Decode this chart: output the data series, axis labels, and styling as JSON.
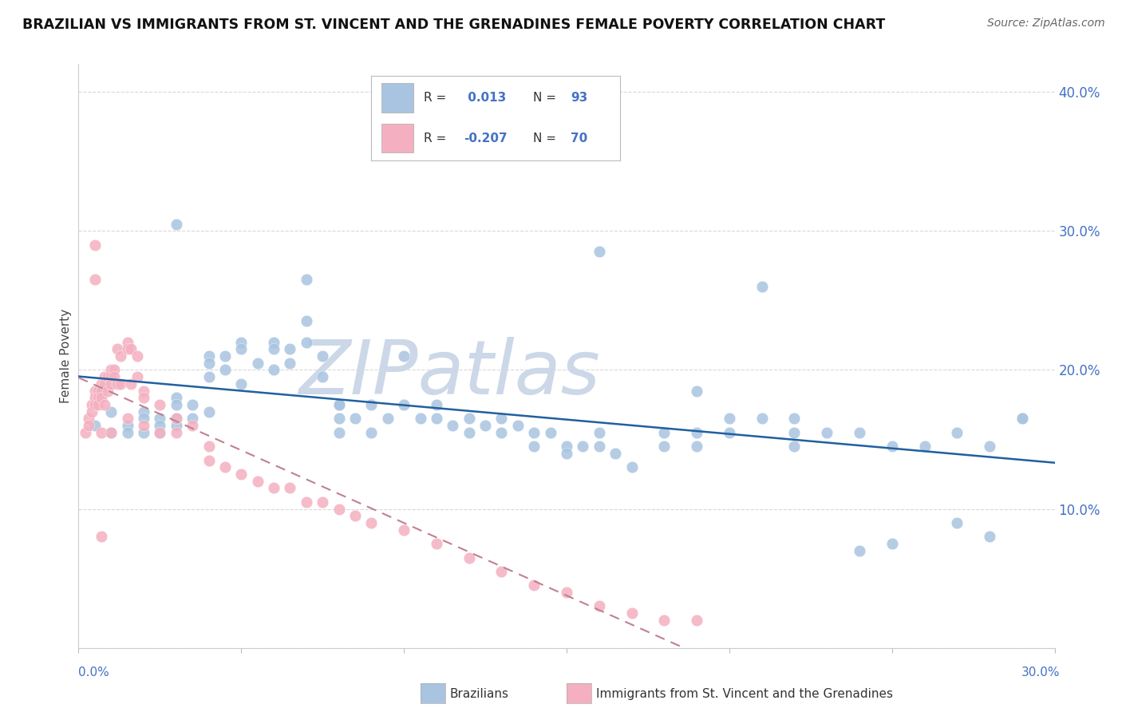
{
  "title": "BRAZILIAN VS IMMIGRANTS FROM ST. VINCENT AND THE GRENADINES FEMALE POVERTY CORRELATION CHART",
  "source": "Source: ZipAtlas.com",
  "ylabel": "Female Poverty",
  "xlim": [
    0.0,
    0.3
  ],
  "ylim": [
    0.0,
    0.42
  ],
  "yticks": [
    0.0,
    0.1,
    0.2,
    0.3,
    0.4
  ],
  "ytick_labels": [
    "",
    "10.0%",
    "20.0%",
    "30.0%",
    "40.0%"
  ],
  "legend_r1": " 0.013",
  "legend_n1": "93",
  "legend_r2": "-0.207",
  "legend_n2": "70",
  "blue_color": "#a8c4e0",
  "pink_color": "#f4b0c0",
  "trend_blue_color": "#2060a0",
  "trend_pink_color": "#c08090",
  "watermark": "ZIPatlas",
  "watermark_color": "#ccd8e8",
  "background_color": "#ffffff",
  "grid_color": "#d8d8d8",
  "blue_x": [
    0.005,
    0.01,
    0.01,
    0.015,
    0.015,
    0.02,
    0.02,
    0.02,
    0.025,
    0.025,
    0.025,
    0.03,
    0.03,
    0.03,
    0.03,
    0.035,
    0.035,
    0.04,
    0.04,
    0.04,
    0.04,
    0.045,
    0.045,
    0.05,
    0.05,
    0.05,
    0.055,
    0.06,
    0.06,
    0.06,
    0.065,
    0.065,
    0.07,
    0.07,
    0.075,
    0.075,
    0.08,
    0.08,
    0.08,
    0.085,
    0.09,
    0.09,
    0.095,
    0.1,
    0.1,
    0.105,
    0.11,
    0.11,
    0.115,
    0.12,
    0.12,
    0.125,
    0.13,
    0.13,
    0.135,
    0.14,
    0.14,
    0.145,
    0.15,
    0.15,
    0.155,
    0.16,
    0.16,
    0.165,
    0.17,
    0.18,
    0.18,
    0.19,
    0.19,
    0.2,
    0.2,
    0.21,
    0.22,
    0.22,
    0.23,
    0.24,
    0.25,
    0.26,
    0.27,
    0.27,
    0.28,
    0.28,
    0.29,
    0.03,
    0.07,
    0.08,
    0.21,
    0.24,
    0.16,
    0.19,
    0.22,
    0.25,
    0.29
  ],
  "blue_y": [
    0.16,
    0.17,
    0.155,
    0.16,
    0.155,
    0.17,
    0.165,
    0.155,
    0.165,
    0.16,
    0.155,
    0.18,
    0.175,
    0.165,
    0.16,
    0.175,
    0.165,
    0.21,
    0.205,
    0.195,
    0.17,
    0.21,
    0.2,
    0.22,
    0.215,
    0.19,
    0.205,
    0.22,
    0.215,
    0.2,
    0.215,
    0.205,
    0.235,
    0.22,
    0.21,
    0.195,
    0.175,
    0.165,
    0.155,
    0.165,
    0.175,
    0.155,
    0.165,
    0.21,
    0.175,
    0.165,
    0.175,
    0.165,
    0.16,
    0.165,
    0.155,
    0.16,
    0.165,
    0.155,
    0.16,
    0.155,
    0.145,
    0.155,
    0.145,
    0.14,
    0.145,
    0.155,
    0.145,
    0.14,
    0.13,
    0.155,
    0.145,
    0.155,
    0.145,
    0.165,
    0.155,
    0.165,
    0.155,
    0.145,
    0.155,
    0.155,
    0.145,
    0.145,
    0.09,
    0.155,
    0.145,
    0.08,
    0.165,
    0.305,
    0.265,
    0.175,
    0.26,
    0.07,
    0.285,
    0.185,
    0.165,
    0.075,
    0.165
  ],
  "pink_x": [
    0.002,
    0.003,
    0.003,
    0.004,
    0.004,
    0.005,
    0.005,
    0.005,
    0.005,
    0.006,
    0.006,
    0.006,
    0.007,
    0.007,
    0.007,
    0.007,
    0.008,
    0.008,
    0.008,
    0.009,
    0.009,
    0.01,
    0.01,
    0.01,
    0.01,
    0.011,
    0.011,
    0.012,
    0.012,
    0.013,
    0.013,
    0.015,
    0.015,
    0.015,
    0.016,
    0.016,
    0.018,
    0.018,
    0.02,
    0.02,
    0.02,
    0.025,
    0.025,
    0.03,
    0.03,
    0.035,
    0.04,
    0.04,
    0.045,
    0.05,
    0.055,
    0.06,
    0.065,
    0.07,
    0.075,
    0.08,
    0.085,
    0.09,
    0.1,
    0.11,
    0.12,
    0.13,
    0.14,
    0.15,
    0.16,
    0.17,
    0.18,
    0.19,
    0.005,
    0.007
  ],
  "pink_y": [
    0.155,
    0.165,
    0.16,
    0.175,
    0.17,
    0.185,
    0.18,
    0.175,
    0.29,
    0.185,
    0.18,
    0.175,
    0.19,
    0.185,
    0.18,
    0.155,
    0.195,
    0.19,
    0.175,
    0.195,
    0.185,
    0.2,
    0.195,
    0.19,
    0.155,
    0.2,
    0.195,
    0.215,
    0.19,
    0.21,
    0.19,
    0.22,
    0.215,
    0.165,
    0.215,
    0.19,
    0.21,
    0.195,
    0.185,
    0.18,
    0.16,
    0.175,
    0.155,
    0.165,
    0.155,
    0.16,
    0.145,
    0.135,
    0.13,
    0.125,
    0.12,
    0.115,
    0.115,
    0.105,
    0.105,
    0.1,
    0.095,
    0.09,
    0.085,
    0.075,
    0.065,
    0.055,
    0.045,
    0.04,
    0.03,
    0.025,
    0.02,
    0.02,
    0.265,
    0.08
  ]
}
